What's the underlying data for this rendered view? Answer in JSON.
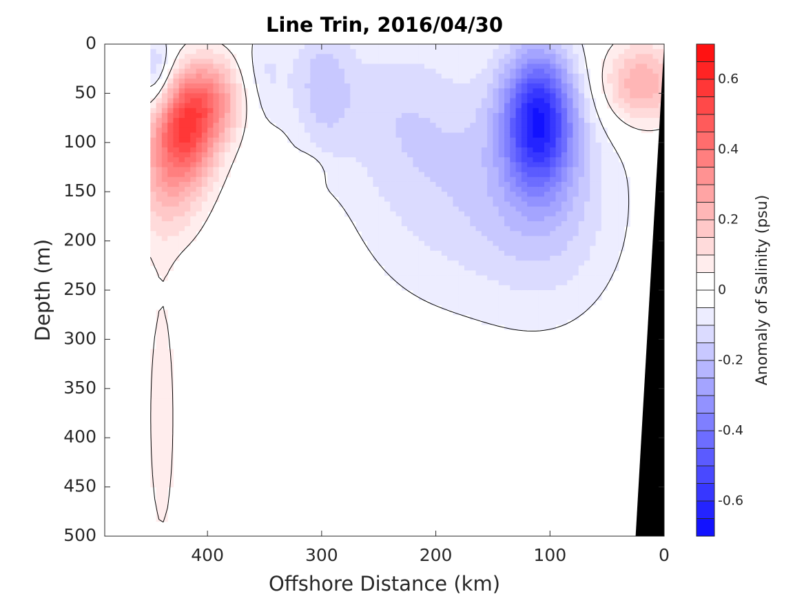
{
  "chart_data": {
    "type": "contourf",
    "title": "Line Trin, 2016/04/30",
    "xlabel": "Offshore Distance (km)",
    "ylabel": "Depth (m)",
    "colorbar_label": "Anomaly of Salinity (psu)",
    "xlim": [
      490,
      0
    ],
    "ylim": [
      500,
      0
    ],
    "x_ticks": [
      400,
      300,
      200,
      100,
      0
    ],
    "y_ticks": [
      0,
      50,
      100,
      150,
      200,
      250,
      300,
      350,
      400,
      450,
      500
    ],
    "colorbar_range": [
      -0.7,
      0.7
    ],
    "colorbar_step": 0.05,
    "colorbar_ticks": [
      -0.6,
      -0.4,
      -0.2,
      0,
      0.2,
      0.4,
      0.6
    ],
    "data_x_extent": [
      450,
      0
    ],
    "zero_contour": "black",
    "colormap": {
      "negative": "#0000ff",
      "zero": "#ffffff",
      "positive": "#ff0000"
    },
    "anomaly_features": [
      {
        "x": 420,
        "depth": 85,
        "value": 0.45,
        "sx": 20,
        "sy": 38
      },
      {
        "x": 395,
        "depth": 55,
        "value": 0.25,
        "sx": 20,
        "sy": 30
      },
      {
        "x": 435,
        "depth": 140,
        "value": 0.18,
        "sx": 22,
        "sy": 45
      },
      {
        "x": 440,
        "depth": 380,
        "value": 0.08,
        "sx": 10,
        "sy": 110
      },
      {
        "x": 20,
        "depth": 40,
        "value": 0.25,
        "sx": 25,
        "sy": 30
      },
      {
        "x": 315,
        "depth": 128,
        "value": 0.08,
        "sx": 10,
        "sy": 10
      },
      {
        "x": 110,
        "depth": 75,
        "value": -0.55,
        "sx": 22,
        "sy": 50
      },
      {
        "x": 100,
        "depth": 160,
        "value": -0.15,
        "sx": 45,
        "sy": 80
      },
      {
        "x": 190,
        "depth": 140,
        "value": -0.12,
        "sx": 60,
        "sy": 90
      },
      {
        "x": 300,
        "depth": 40,
        "value": -0.15,
        "sx": 20,
        "sy": 50
      },
      {
        "x": 240,
        "depth": 60,
        "value": -0.08,
        "sx": 40,
        "sy": 60
      },
      {
        "x": 445,
        "depth": 30,
        "value": -0.18,
        "sx": 12,
        "sy": 30
      },
      {
        "x": 350,
        "depth": 30,
        "value": -0.1,
        "sx": 15,
        "sy": 40
      }
    ],
    "bathymetry": [
      [
        0,
        0
      ],
      [
        25,
        500
      ],
      [
        0,
        500
      ]
    ],
    "bathymetry_color": "#000000"
  }
}
